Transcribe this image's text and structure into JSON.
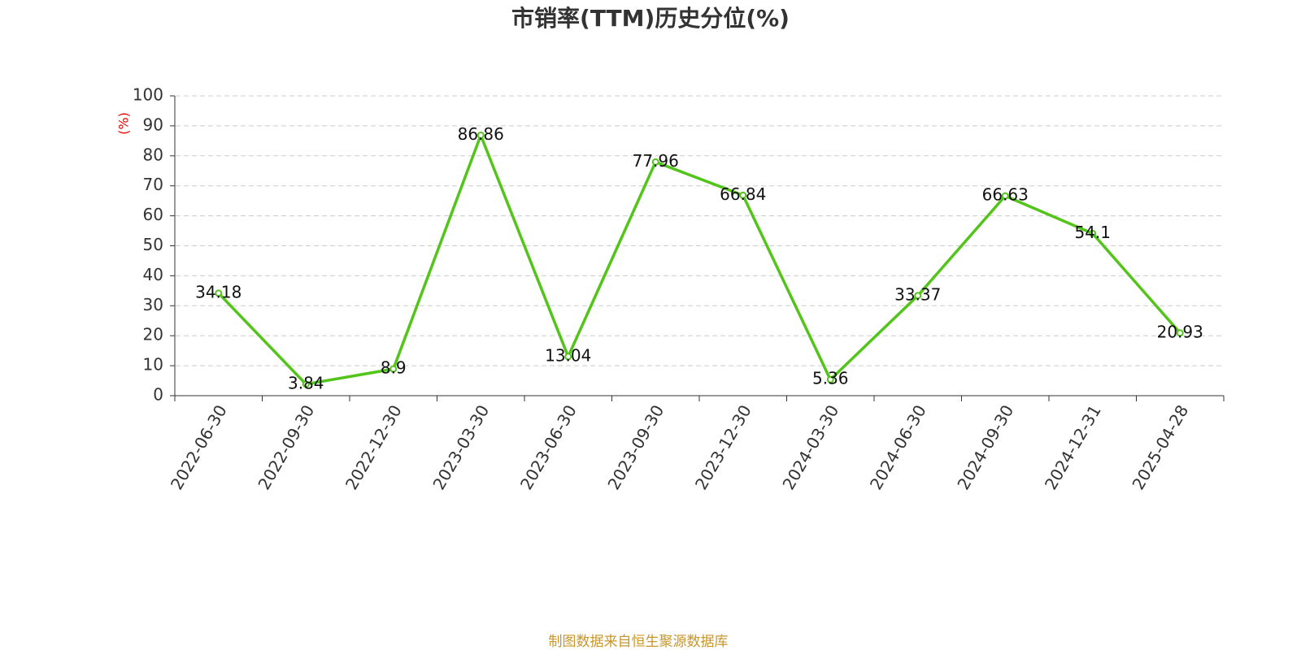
{
  "chart_data": {
    "type": "line",
    "title": "市销率(TTM)历史分位(%)",
    "y_label": "(%)",
    "source": "制图数据来自恒生聚源数据库",
    "categories": [
      "2022-06-30",
      "2022-09-30",
      "2022-12-30",
      "2023-03-30",
      "2023-06-30",
      "2023-09-30",
      "2023-12-30",
      "2024-03-30",
      "2024-06-30",
      "2024-09-30",
      "2024-12-31",
      "2025-04-28"
    ],
    "series": [
      {
        "color": "#52c41a",
        "values": [
          34.18,
          3.84,
          8.9,
          86.86,
          13.04,
          77.96,
          66.84,
          5.36,
          33.37,
          66.63,
          54.1,
          20.93
        ]
      }
    ],
    "ylim": [
      0,
      100
    ],
    "yticks": [
      0,
      10,
      20,
      30,
      40,
      50,
      60,
      70,
      80,
      90,
      100
    ],
    "grid": true
  }
}
